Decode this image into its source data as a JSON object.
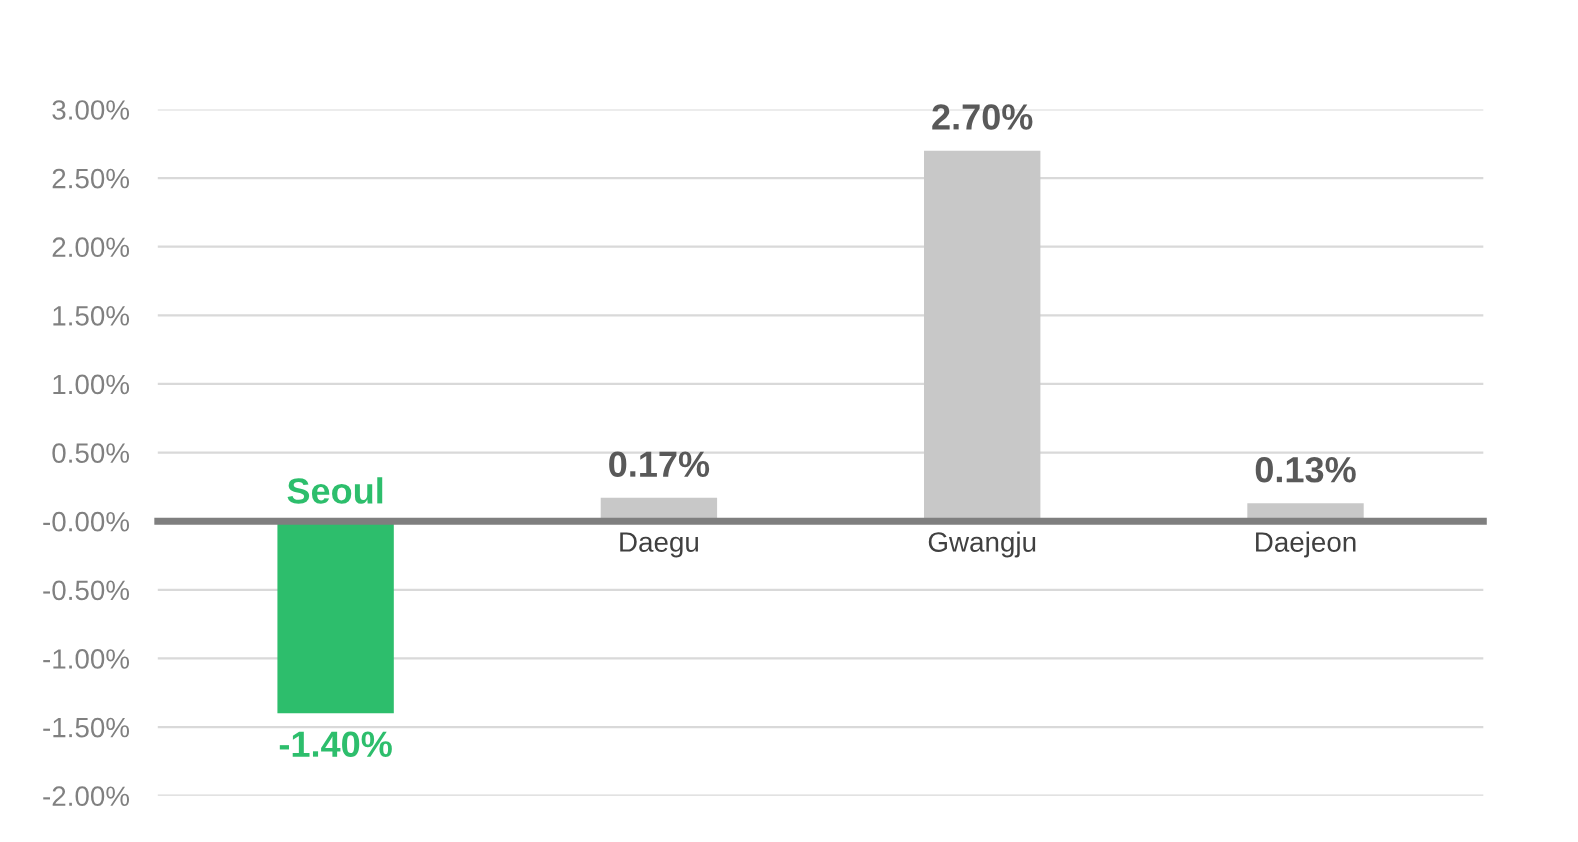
{
  "chart_data": {
    "type": "bar",
    "categories": [
      "Seoul",
      "Daegu",
      "Gwangju",
      "Daejeon"
    ],
    "values": [
      -1.4,
      0.17,
      2.7,
      0.13
    ],
    "colors": [
      "#2dbe6c",
      "#c8c8c8",
      "#c8c8c8",
      "#c8c8c8"
    ],
    "value_labels": [
      "-1.40%",
      "0.17%",
      "2.70%",
      "0.13%"
    ],
    "ylim": [
      -2.0,
      3.0
    ],
    "yticks": [
      {
        "value": -2.0,
        "label": "-2.00%"
      },
      {
        "value": -1.5,
        "label": "-1.50%"
      },
      {
        "value": -1.0,
        "label": "-1.00%"
      },
      {
        "value": -0.5,
        "label": "-0.50%"
      },
      {
        "value": 0,
        "label": "-0.00%"
      },
      {
        "value": 0.5,
        "label": "0.50%"
      },
      {
        "value": 1.0,
        "label": "1.00%"
      },
      {
        "value": 1.5,
        "label": "1.50%"
      },
      {
        "value": 2.0,
        "label": "2.00%"
      },
      {
        "value": 2.5,
        "label": "2.50%"
      },
      {
        "value": 3.0,
        "label": "3.00%"
      }
    ],
    "grid": "y"
  }
}
